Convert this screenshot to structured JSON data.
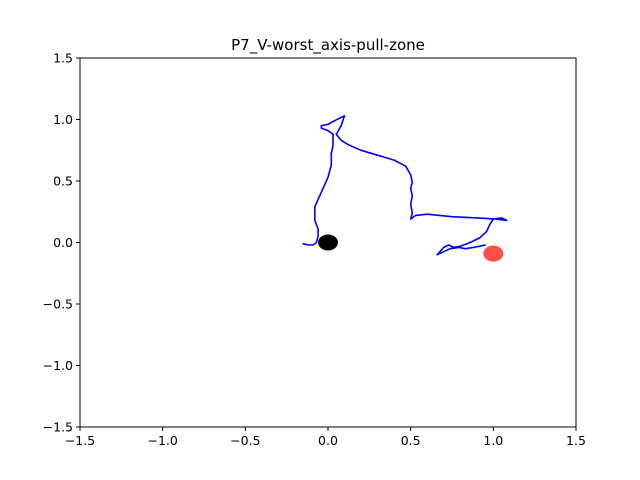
{
  "chart_data": {
    "type": "line",
    "title": "P7_V-worst_axis-pull-zone",
    "xlabel": "",
    "ylabel": "",
    "xlim": [
      -1.5,
      1.5
    ],
    "ylim": [
      -1.5,
      1.5
    ],
    "x_ticks": [
      -1.5,
      -1.0,
      -0.5,
      0.0,
      0.5,
      1.0,
      1.5
    ],
    "y_ticks": [
      -1.5,
      -1.0,
      -0.5,
      0.0,
      0.5,
      1.0,
      1.5
    ],
    "x_tick_labels": [
      "−1.5",
      "−1.0",
      "−0.5",
      "0.0",
      "0.5",
      "1.0",
      "1.5"
    ],
    "y_tick_labels": [
      "−1.5",
      "−1.0",
      "−0.5",
      "0.0",
      "0.5",
      "1.0",
      "1.5"
    ],
    "grid": false,
    "series": [
      {
        "color": "#0000ff",
        "points": [
          [
            -0.15,
            -0.01
          ],
          [
            -0.12,
            -0.02
          ],
          [
            -0.09,
            -0.02
          ],
          [
            -0.07,
            0.0
          ],
          [
            -0.06,
            0.05
          ],
          [
            -0.06,
            0.11
          ],
          [
            -0.08,
            0.18
          ],
          [
            -0.08,
            0.29
          ],
          [
            -0.04,
            0.41
          ],
          [
            0.0,
            0.53
          ],
          [
            0.02,
            0.63
          ],
          [
            0.02,
            0.72
          ],
          [
            0.03,
            0.79
          ],
          [
            0.03,
            0.88
          ],
          [
            0.0,
            0.91
          ],
          [
            -0.04,
            0.93
          ],
          [
            -0.04,
            0.95
          ],
          [
            0.0,
            0.96
          ],
          [
            0.04,
            0.99
          ],
          [
            0.1,
            1.03
          ],
          [
            0.08,
            0.95
          ],
          [
            0.05,
            0.88
          ],
          [
            0.08,
            0.83
          ],
          [
            0.13,
            0.79
          ],
          [
            0.2,
            0.75
          ],
          [
            0.3,
            0.71
          ],
          [
            0.4,
            0.67
          ],
          [
            0.47,
            0.62
          ],
          [
            0.5,
            0.55
          ],
          [
            0.51,
            0.49
          ],
          [
            0.5,
            0.44
          ],
          [
            0.51,
            0.38
          ],
          [
            0.5,
            0.31
          ],
          [
            0.51,
            0.24
          ],
          [
            0.5,
            0.19
          ],
          [
            0.53,
            0.22
          ],
          [
            0.6,
            0.23
          ],
          [
            0.75,
            0.21
          ],
          [
            0.9,
            0.2
          ],
          [
            1.02,
            0.19
          ],
          [
            1.08,
            0.18
          ],
          [
            1.05,
            0.2
          ],
          [
            1.0,
            0.19
          ],
          [
            0.98,
            0.15
          ],
          [
            0.96,
            0.09
          ],
          [
            0.92,
            0.04
          ],
          [
            0.86,
            0.0
          ],
          [
            0.8,
            -0.03
          ],
          [
            0.76,
            -0.04
          ],
          [
            0.73,
            -0.02
          ],
          [
            0.7,
            -0.04
          ],
          [
            0.68,
            -0.07
          ],
          [
            0.66,
            -0.1
          ],
          [
            0.69,
            -0.08
          ],
          [
            0.74,
            -0.05
          ],
          [
            0.79,
            -0.04
          ],
          [
            0.83,
            -0.05
          ],
          [
            0.88,
            -0.04
          ],
          [
            0.92,
            -0.03
          ],
          [
            0.95,
            -0.02
          ]
        ]
      }
    ],
    "markers": [
      {
        "x": 0.0,
        "y": 0.0,
        "color": "#000000",
        "opacity": 1.0
      },
      {
        "x": 1.0,
        "y": -0.09,
        "color": "#ff0000",
        "opacity": 0.7
      }
    ]
  }
}
